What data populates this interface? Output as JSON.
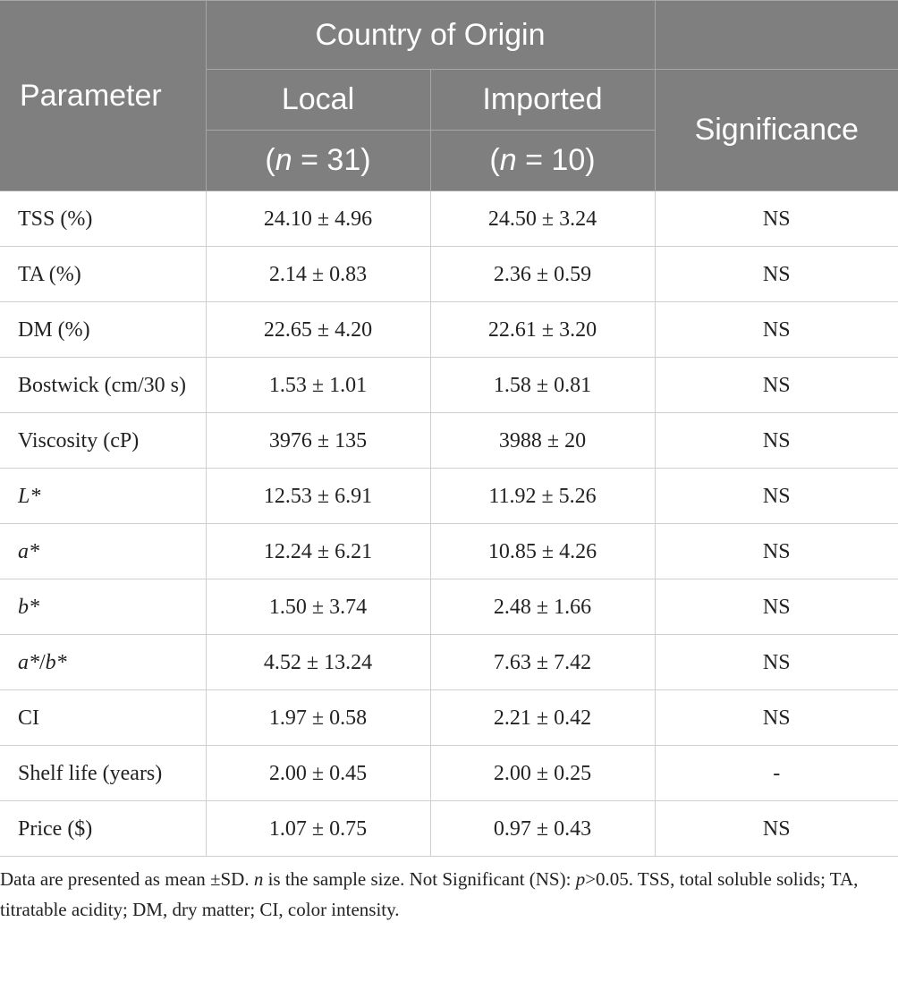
{
  "header": {
    "parameter": "Parameter",
    "group": "Country of Origin",
    "significance": "Significance",
    "columns": [
      {
        "name": "Local",
        "n": [
          {
            "text": "("
          },
          {
            "text": "n",
            "italic": true
          },
          {
            "text": " = 31)"
          }
        ]
      },
      {
        "name": "Imported",
        "n": [
          {
            "text": "("
          },
          {
            "text": "n",
            "italic": true
          },
          {
            "text": " = 10)"
          }
        ]
      }
    ]
  },
  "rows": [
    {
      "parameter": [
        {
          "text": "TSS (%)"
        }
      ],
      "local": "24.10 ± 4.96",
      "imported": "24.50 ± 3.24",
      "significance": "NS"
    },
    {
      "parameter": [
        {
          "text": "TA (%)"
        }
      ],
      "local": "2.14 ± 0.83",
      "imported": "2.36 ± 0.59",
      "significance": "NS"
    },
    {
      "parameter": [
        {
          "text": "DM (%)"
        }
      ],
      "local": "22.65 ± 4.20",
      "imported": "22.61 ± 3.20",
      "significance": "NS"
    },
    {
      "parameter": [
        {
          "text": "Bostwick (cm/30 s)"
        }
      ],
      "local": "1.53 ± 1.01",
      "imported": "1.58 ± 0.81",
      "significance": "NS"
    },
    {
      "parameter": [
        {
          "text": "Viscosity (cP)"
        }
      ],
      "local": "3976 ± 135",
      "imported": "3988 ± 20",
      "significance": "NS"
    },
    {
      "parameter": [
        {
          "text": "L*",
          "italic": true
        }
      ],
      "local": "12.53 ± 6.91",
      "imported": "11.92 ± 5.26",
      "significance": "NS"
    },
    {
      "parameter": [
        {
          "text": "a*",
          "italic": true
        }
      ],
      "local": "12.24 ± 6.21",
      "imported": "10.85 ± 4.26",
      "significance": "NS"
    },
    {
      "parameter": [
        {
          "text": "b*",
          "italic": true
        }
      ],
      "local": "1.50 ± 3.74",
      "imported": "2.48 ± 1.66",
      "significance": "NS"
    },
    {
      "parameter": [
        {
          "text": "a*",
          "italic": true
        },
        {
          "text": "/"
        },
        {
          "text": "b*",
          "italic": true
        }
      ],
      "local": "4.52 ± 13.24",
      "imported": "7.63 ± 7.42",
      "significance": "NS"
    },
    {
      "parameter": [
        {
          "text": "CI"
        }
      ],
      "local": "1.97 ± 0.58",
      "imported": "2.21 ± 0.42",
      "significance": "NS"
    },
    {
      "parameter": [
        {
          "text": "Shelf life (years)"
        }
      ],
      "local": "2.00 ± 0.45",
      "imported": "2.00 ± 0.25",
      "significance": "-"
    },
    {
      "parameter": [
        {
          "text": "Price ($)"
        }
      ],
      "local": "1.07 ± 0.75",
      "imported": "0.97 ± 0.43",
      "significance": "NS"
    }
  ],
  "footnote": [
    {
      "text": "Data are presented as mean ±SD. "
    },
    {
      "text": "n",
      "italic": true
    },
    {
      "text": " is the sample size. Not Significant (NS): "
    },
    {
      "text": "p",
      "italic": true
    },
    {
      "text": ">0.05. TSS, total soluble solids; TA, titratable acidity; DM, dry matter; CI, color intensity."
    }
  ]
}
